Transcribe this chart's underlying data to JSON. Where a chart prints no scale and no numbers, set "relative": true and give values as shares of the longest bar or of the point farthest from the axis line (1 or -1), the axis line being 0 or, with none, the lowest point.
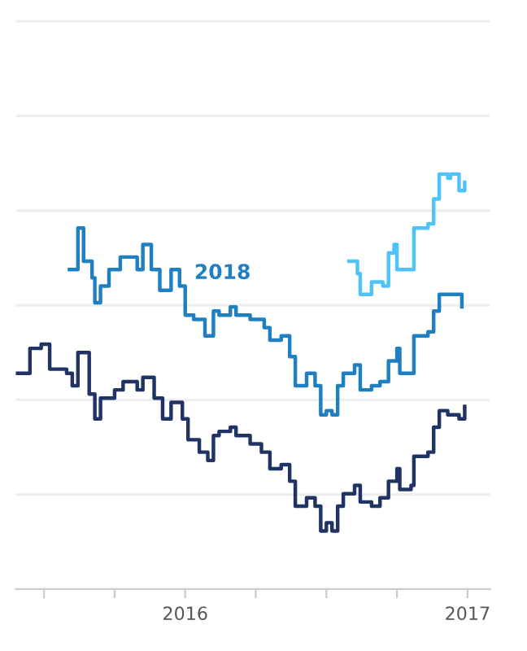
{
  "chart_data": {
    "type": "step",
    "relative": true,
    "grid": "y",
    "legend": false,
    "tick_labels": "x",
    "xlim": [
      2015.4,
      2017.08
    ],
    "xticks": [
      {
        "value": 2015.5,
        "label": null
      },
      {
        "value": 2015.75,
        "label": null
      },
      {
        "value": 2016,
        "label": "2016"
      },
      {
        "value": 2016.25,
        "label": null
      },
      {
        "value": 2016.5,
        "label": null
      },
      {
        "value": 2016.75,
        "label": null
      },
      {
        "value": 2017,
        "label": "2017"
      }
    ],
    "series": [
      {
        "color": "#1f3364",
        "x": [
          2015.4,
          2015.45,
          2015.49,
          2015.52,
          2015.58,
          2015.6,
          2015.62,
          2015.66,
          2015.68,
          2015.7,
          2015.75,
          2015.78,
          2015.83,
          2015.85,
          2015.89,
          2015.92,
          2015.95,
          2015.99,
          2016.01,
          2016.05,
          2016.08,
          2016.1,
          2016.12,
          2016.16,
          2016.18,
          2016.23,
          2016.27,
          2016.3,
          2016.34,
          2016.37,
          2016.39,
          2016.43,
          2016.46,
          2016.48,
          2016.5,
          2016.52,
          2016.54,
          2016.56,
          2016.6,
          2016.62,
          2016.66,
          2016.69,
          2016.72,
          2016.75,
          2016.76,
          2016.8,
          2016.81,
          2016.86,
          2016.88,
          2016.9,
          2016.93,
          2016.97,
          2016.99
        ],
        "values": [
          0.52,
          0.58,
          0.59,
          0.53,
          0.52,
          0.49,
          0.57,
          0.47,
          0.41,
          0.46,
          0.48,
          0.5,
          0.48,
          0.51,
          0.46,
          0.41,
          0.45,
          0.41,
          0.36,
          0.33,
          0.31,
          0.37,
          0.38,
          0.39,
          0.37,
          0.35,
          0.33,
          0.29,
          0.3,
          0.26,
          0.2,
          0.22,
          0.2,
          0.14,
          0.16,
          0.14,
          0.2,
          0.23,
          0.25,
          0.21,
          0.2,
          0.22,
          0.26,
          0.29,
          0.24,
          0.25,
          0.32,
          0.33,
          0.39,
          0.43,
          0.42,
          0.41,
          0.44
        ]
      },
      {
        "name": "2018",
        "color": "#1f7fc0",
        "x": [
          2015.59,
          2015.62,
          2015.64,
          2015.67,
          2015.68,
          2015.7,
          2015.73,
          2015.77,
          2015.83,
          2015.85,
          2015.88,
          2015.91,
          2015.95,
          2015.98,
          2016.0,
          2016.03,
          2016.07,
          2016.1,
          2016.12,
          2016.16,
          2016.18,
          2016.23,
          2016.28,
          2016.3,
          2016.34,
          2016.37,
          2016.39,
          2016.43,
          2016.46,
          2016.48,
          2016.5,
          2016.52,
          2016.54,
          2016.56,
          2016.6,
          2016.62,
          2016.66,
          2016.69,
          2016.72,
          2016.75,
          2016.76,
          2016.8,
          2016.81,
          2016.86,
          2016.88,
          2016.9,
          2016.94,
          2016.98
        ],
        "values": [
          0.77,
          0.87,
          0.79,
          0.75,
          0.69,
          0.73,
          0.77,
          0.8,
          0.77,
          0.83,
          0.77,
          0.72,
          0.77,
          0.73,
          0.66,
          0.65,
          0.61,
          0.67,
          0.66,
          0.68,
          0.66,
          0.65,
          0.63,
          0.6,
          0.61,
          0.56,
          0.49,
          0.52,
          0.49,
          0.42,
          0.43,
          0.42,
          0.49,
          0.52,
          0.54,
          0.48,
          0.49,
          0.5,
          0.55,
          0.58,
          0.52,
          0.52,
          0.61,
          0.62,
          0.67,
          0.71,
          0.71,
          0.68
        ]
      },
      {
        "color": "#4fc3f7",
        "x": [
          2016.58,
          2016.61,
          2016.62,
          2016.66,
          2016.7,
          2016.72,
          2016.74,
          2016.75,
          2016.79,
          2016.81,
          2016.86,
          2016.88,
          2016.9,
          2016.93,
          2016.94,
          2016.97,
          2016.99
        ],
        "values": [
          0.79,
          0.76,
          0.71,
          0.74,
          0.73,
          0.81,
          0.83,
          0.77,
          0.77,
          0.87,
          0.88,
          0.94,
          1.0,
          0.99,
          1.0,
          0.96,
          0.98
        ]
      }
    ]
  }
}
